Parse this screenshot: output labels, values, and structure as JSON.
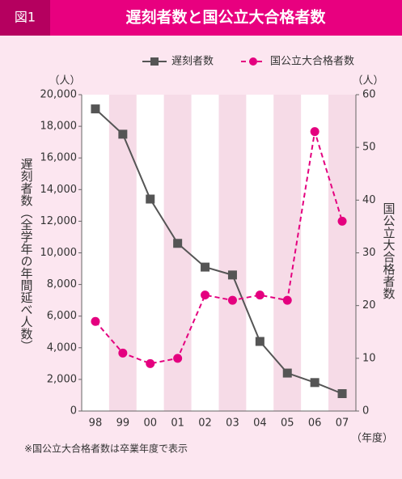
{
  "chart_data": {
    "type": "line",
    "figure_label": "図1",
    "title": "遅刻者数と国公立大合格者数",
    "y_unit": "（人）",
    "y2_unit": "（人）",
    "x_unit": "（年度）",
    "y_label": "遅刻者数（全学年の年間延べ人数）",
    "y2_label": "国公立大合格者数",
    "note": "※国公立大合格者数は卒業年度で表示",
    "categories": [
      "98",
      "99",
      "00",
      "01",
      "02",
      "03",
      "04",
      "05",
      "06",
      "07"
    ],
    "series": [
      {
        "name": "遅刻者数",
        "color": "#555555",
        "axis": "y",
        "values": [
          19100,
          17500,
          13400,
          10600,
          9100,
          8600,
          4400,
          2400,
          1800,
          1100
        ]
      },
      {
        "name": "国公立大合格者数",
        "color": "#e4007f",
        "axis": "y2",
        "values": [
          17,
          11,
          9,
          10,
          22,
          21,
          22,
          21,
          53,
          36
        ]
      }
    ],
    "ylim": [
      0,
      20000
    ],
    "yticks": [
      0,
      {
        "value": 2000,
        "label": "2,000"
      },
      {
        "value": 4000,
        "label": "4,000"
      },
      {
        "value": 6000,
        "label": "6,000"
      },
      {
        "value": 8000,
        "label": "8,000"
      },
      {
        "value": 10000,
        "label": "10,000"
      },
      {
        "value": 12000,
        "label": "12,000"
      },
      {
        "value": 14000,
        "label": "14,000"
      },
      {
        "value": 16000,
        "label": "16,000"
      },
      {
        "value": 18000,
        "label": "18,000"
      },
      {
        "value": 20000,
        "label": "20,000"
      }
    ],
    "y2lim": [
      0,
      60
    ],
    "y2ticks": [
      0,
      10,
      20,
      30,
      40,
      50,
      60
    ]
  }
}
